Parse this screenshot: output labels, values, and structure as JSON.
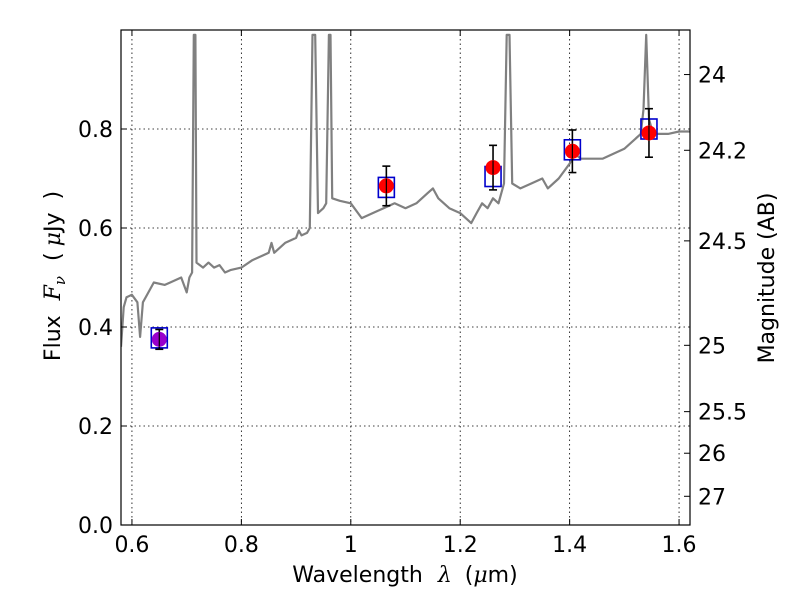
{
  "chart_data": {
    "type": "scatter",
    "title": "",
    "xlim": [
      0.58,
      1.62
    ],
    "ylim": [
      0.0,
      1.0
    ],
    "grid": true,
    "x_ticks": [
      0.6,
      0.8,
      1.0,
      1.2,
      1.4,
      1.6
    ],
    "x_tick_labels": [
      "0.6",
      "0.8",
      "1",
      "1.2",
      "1.4",
      "1.6"
    ],
    "y_ticks": [
      0.0,
      0.2,
      0.4,
      0.6,
      0.8
    ],
    "y_tick_labels": [
      "0.0",
      "0.2",
      "0.4",
      "0.6",
      "0.8"
    ],
    "xlabel": {
      "prefix": "Wavelength",
      "symbol": "λ",
      "unit_open": "(",
      "unit_mu": "μ",
      "unit_rest": "m)"
    },
    "ylabel": {
      "prefix": "Flux",
      "symbol": "F",
      "subscript": "ν",
      "unit_open": "(",
      "unit_mu": "μ",
      "unit_rest": "Jy",
      "unit_close": ")"
    },
    "right_axis": {
      "label": "Magnitude (AB)",
      "ticks": [
        {
          "label": "24",
          "flux": 0.91
        },
        {
          "label": "24.2",
          "flux": 0.757
        },
        {
          "label": "24.5",
          "flux": 0.574
        },
        {
          "label": "25",
          "flux": 0.363
        },
        {
          "label": "25.5",
          "flux": 0.229
        },
        {
          "label": "26",
          "flux": 0.145
        },
        {
          "label": "27",
          "flux": 0.058
        }
      ]
    },
    "series": [
      {
        "kind": "line",
        "color": "#808080",
        "points": [
          [
            0.58,
            0.36
          ],
          [
            0.585,
            0.44
          ],
          [
            0.59,
            0.46
          ],
          [
            0.6,
            0.465
          ],
          [
            0.61,
            0.45
          ],
          [
            0.615,
            0.38
          ],
          [
            0.62,
            0.45
          ],
          [
            0.63,
            0.47
          ],
          [
            0.64,
            0.49
          ],
          [
            0.66,
            0.485
          ],
          [
            0.67,
            0.49
          ],
          [
            0.68,
            0.495
          ],
          [
            0.69,
            0.5
          ],
          [
            0.7,
            0.47
          ],
          [
            0.705,
            0.5
          ],
          [
            0.71,
            0.51
          ],
          [
            0.713,
            0.99
          ],
          [
            0.716,
            0.99
          ],
          [
            0.718,
            0.53
          ],
          [
            0.73,
            0.52
          ],
          [
            0.74,
            0.53
          ],
          [
            0.75,
            0.52
          ],
          [
            0.76,
            0.525
          ],
          [
            0.77,
            0.51
          ],
          [
            0.78,
            0.515
          ],
          [
            0.8,
            0.52
          ],
          [
            0.82,
            0.535
          ],
          [
            0.84,
            0.545
          ],
          [
            0.85,
            0.55
          ],
          [
            0.855,
            0.57
          ],
          [
            0.86,
            0.55
          ],
          [
            0.87,
            0.56
          ],
          [
            0.88,
            0.57
          ],
          [
            0.89,
            0.575
          ],
          [
            0.9,
            0.58
          ],
          [
            0.905,
            0.595
          ],
          [
            0.91,
            0.585
          ],
          [
            0.92,
            0.59
          ],
          [
            0.925,
            0.6
          ],
          [
            0.93,
            0.99
          ],
          [
            0.935,
            0.99
          ],
          [
            0.94,
            0.63
          ],
          [
            0.95,
            0.64
          ],
          [
            0.955,
            0.65
          ],
          [
            0.96,
            0.99
          ],
          [
            0.963,
            0.99
          ],
          [
            0.966,
            0.66
          ],
          [
            0.98,
            0.655
          ],
          [
            1.0,
            0.65
          ],
          [
            1.02,
            0.62
          ],
          [
            1.04,
            0.63
          ],
          [
            1.06,
            0.64
          ],
          [
            1.08,
            0.65
          ],
          [
            1.1,
            0.64
          ],
          [
            1.12,
            0.65
          ],
          [
            1.14,
            0.67
          ],
          [
            1.15,
            0.68
          ],
          [
            1.16,
            0.66
          ],
          [
            1.18,
            0.64
          ],
          [
            1.2,
            0.63
          ],
          [
            1.22,
            0.61
          ],
          [
            1.23,
            0.63
          ],
          [
            1.24,
            0.65
          ],
          [
            1.25,
            0.64
          ],
          [
            1.26,
            0.66
          ],
          [
            1.27,
            0.65
          ],
          [
            1.28,
            0.69
          ],
          [
            1.285,
            0.99
          ],
          [
            1.29,
            0.99
          ],
          [
            1.295,
            0.69
          ],
          [
            1.31,
            0.68
          ],
          [
            1.33,
            0.69
          ],
          [
            1.35,
            0.7
          ],
          [
            1.36,
            0.68
          ],
          [
            1.38,
            0.7
          ],
          [
            1.4,
            0.73
          ],
          [
            1.41,
            0.75
          ],
          [
            1.42,
            0.74
          ],
          [
            1.44,
            0.74
          ],
          [
            1.46,
            0.74
          ],
          [
            1.48,
            0.75
          ],
          [
            1.5,
            0.76
          ],
          [
            1.52,
            0.78
          ],
          [
            1.53,
            0.79
          ],
          [
            1.535,
            0.84
          ],
          [
            1.54,
            0.99
          ],
          [
            1.545,
            0.82
          ],
          [
            1.55,
            0.8
          ],
          [
            1.56,
            0.79
          ],
          [
            1.58,
            0.79
          ],
          [
            1.6,
            0.795
          ],
          [
            1.62,
            0.795
          ]
        ]
      },
      {
        "kind": "squares",
        "color": "#0000cc",
        "points": [
          [
            0.65,
            0.378
          ],
          [
            1.065,
            0.682
          ],
          [
            1.26,
            0.704
          ],
          [
            1.405,
            0.758
          ],
          [
            1.545,
            0.8
          ]
        ]
      },
      {
        "kind": "errorbar-points",
        "color": "#ff0000",
        "points": [
          {
            "x": 0.65,
            "y": 0.375,
            "err": 0.02,
            "color": "#9900cc"
          },
          {
            "x": 1.065,
            "y": 0.685,
            "err": 0.04,
            "color": "#ff0000"
          },
          {
            "x": 1.26,
            "y": 0.722,
            "err": 0.045,
            "color": "#ff0000"
          },
          {
            "x": 1.405,
            "y": 0.755,
            "err": 0.043,
            "color": "#ff0000"
          },
          {
            "x": 1.545,
            "y": 0.792,
            "err": 0.049,
            "color": "#ff0000"
          }
        ]
      }
    ]
  }
}
